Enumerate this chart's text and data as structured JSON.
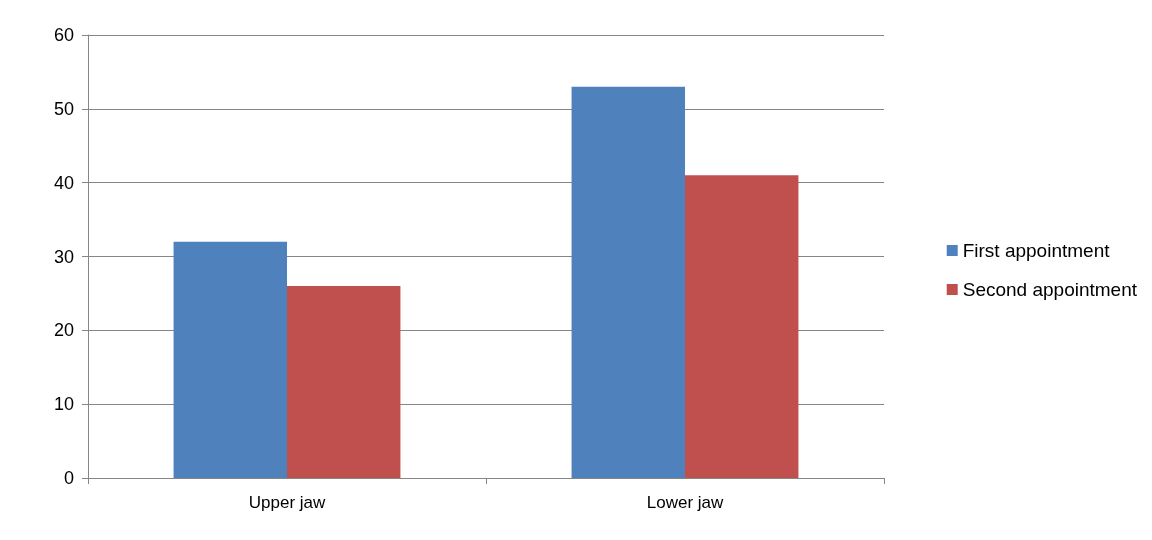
{
  "chart_data": {
    "type": "bar",
    "categories": [
      "Upper jaw",
      "Lower jaw"
    ],
    "series": [
      {
        "name": "First appointment",
        "color": "#4f81bd",
        "values": [
          32,
          53
        ]
      },
      {
        "name": "Second appointment",
        "color": "#c0504d",
        "values": [
          26,
          41
        ]
      }
    ],
    "ylim": [
      0,
      60
    ],
    "yticks": [
      0,
      10,
      20,
      30,
      40,
      50,
      60
    ],
    "grid": "y",
    "legend": "right"
  }
}
